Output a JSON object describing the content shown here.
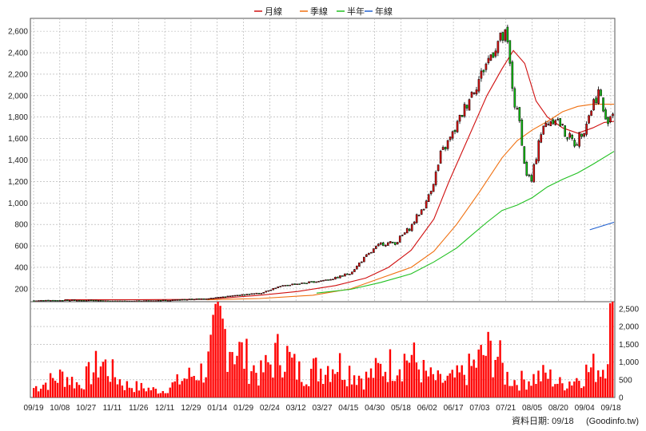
{
  "chart_data": {
    "type": "candlestick",
    "legend": [
      {
        "label": "月線",
        "color": "#d01010"
      },
      {
        "label": "季線",
        "color": "#f07010"
      },
      {
        "label": "半年",
        "color": "#20c020"
      },
      {
        "label": "年線",
        "color": "#2060d0"
      }
    ],
    "price_axis": {
      "ticks": [
        "2,600",
        "2,400",
        "2,200",
        "2,000",
        "1,800",
        "1,600",
        "1,400",
        "1,200",
        "1,000",
        "800",
        "600",
        "400",
        "200"
      ],
      "values": [
        2600,
        2400,
        2200,
        2000,
        1800,
        1600,
        1400,
        1200,
        1000,
        800,
        600,
        400,
        200
      ],
      "ylim": [
        80,
        2720
      ]
    },
    "volume_axis": {
      "ticks": [
        "2,500",
        "2,000",
        "1,500",
        "1,000",
        "500",
        "0"
      ],
      "values": [
        2500,
        2000,
        1500,
        1000,
        500,
        0
      ],
      "ylim": [
        0,
        2700
      ]
    },
    "x_tick_labels": [
      "09/19",
      "10/08",
      "10/27",
      "11/11",
      "11/26",
      "12/11",
      "12/29",
      "01/14",
      "01/29",
      "02/24",
      "03/12",
      "03/27",
      "04/15",
      "04/30",
      "05/18",
      "06/02",
      "06/17",
      "07/03",
      "07/21",
      "08/05",
      "08/20",
      "09/04",
      "09/18"
    ],
    "price_anchors": [
      [
        0,
        90
      ],
      [
        60,
        95
      ],
      [
        120,
        85
      ],
      [
        180,
        95
      ],
      [
        230,
        110
      ],
      [
        270,
        140
      ],
      [
        300,
        160
      ],
      [
        320,
        210
      ],
      [
        340,
        240
      ],
      [
        360,
        255
      ],
      [
        380,
        275
      ],
      [
        400,
        300
      ],
      [
        420,
        350
      ],
      [
        440,
        500
      ],
      [
        460,
        620
      ],
      [
        480,
        630
      ],
      [
        500,
        780
      ],
      [
        520,
        1000
      ],
      [
        530,
        1200
      ],
      [
        540,
        1450
      ],
      [
        560,
        1700
      ],
      [
        575,
        1950
      ],
      [
        590,
        2150
      ],
      [
        600,
        2300
      ],
      [
        615,
        2500
      ],
      [
        625,
        2550
      ],
      [
        630,
        2400
      ],
      [
        637,
        1950
      ],
      [
        644,
        1750
      ],
      [
        652,
        1300
      ],
      [
        660,
        1200
      ],
      [
        670,
        1600
      ],
      [
        680,
        1750
      ],
      [
        692,
        1800
      ],
      [
        705,
        1650
      ],
      [
        718,
        1550
      ],
      [
        730,
        1700
      ],
      [
        740,
        1900
      ],
      [
        750,
        2050
      ],
      [
        758,
        1750
      ],
      [
        768,
        1850
      ]
    ],
    "volume_anchors": [
      [
        0,
        300
      ],
      [
        40,
        700
      ],
      [
        60,
        400
      ],
      [
        90,
        1100
      ],
      [
        120,
        400
      ],
      [
        170,
        200
      ],
      [
        200,
        600
      ],
      [
        230,
        900
      ],
      [
        245,
        2300
      ],
      [
        270,
        1500
      ],
      [
        300,
        700
      ],
      [
        330,
        1500
      ],
      [
        350,
        800
      ],
      [
        380,
        900
      ],
      [
        400,
        1100
      ],
      [
        440,
        600
      ],
      [
        460,
        900
      ],
      [
        500,
        1300
      ],
      [
        520,
        700
      ],
      [
        540,
        500
      ],
      [
        560,
        600
      ],
      [
        580,
        900
      ],
      [
        600,
        1400
      ],
      [
        615,
        1400
      ],
      [
        625,
        700
      ],
      [
        640,
        500
      ],
      [
        660,
        600
      ],
      [
        680,
        700
      ],
      [
        700,
        400
      ],
      [
        720,
        600
      ],
      [
        740,
        900
      ],
      [
        755,
        1000
      ],
      [
        768,
        2700
      ]
    ],
    "moving_averages": [
      {
        "name": "月線",
        "color": "#d01010",
        "points": [
          [
            42,
            98
          ],
          [
            120,
            98
          ],
          [
            230,
            102
          ],
          [
            300,
            140
          ],
          [
            350,
            175
          ],
          [
            400,
            230
          ],
          [
            440,
            300
          ],
          [
            470,
            400
          ],
          [
            500,
            560
          ],
          [
            530,
            850
          ],
          [
            550,
            1200
          ],
          [
            575,
            1600
          ],
          [
            600,
            2000
          ],
          [
            620,
            2250
          ],
          [
            635,
            2420
          ],
          [
            650,
            2300
          ],
          [
            665,
            1950
          ],
          [
            680,
            1800
          ],
          [
            700,
            1700
          ],
          [
            720,
            1650
          ],
          [
            740,
            1700
          ],
          [
            755,
            1750
          ],
          [
            768,
            1760
          ]
        ]
      },
      {
        "name": "季線",
        "color": "#f07010",
        "points": [
          [
            230,
            98
          ],
          [
            300,
            110
          ],
          [
            370,
            140
          ],
          [
            420,
            200
          ],
          [
            460,
            300
          ],
          [
            500,
            400
          ],
          [
            530,
            550
          ],
          [
            560,
            800
          ],
          [
            590,
            1100
          ],
          [
            620,
            1420
          ],
          [
            640,
            1580
          ],
          [
            660,
            1680
          ],
          [
            680,
            1760
          ],
          [
            700,
            1850
          ],
          [
            720,
            1900
          ],
          [
            740,
            1920
          ],
          [
            768,
            1920
          ]
        ]
      },
      {
        "name": "半年",
        "color": "#20c020",
        "points": [
          [
            375,
            160
          ],
          [
            420,
            195
          ],
          [
            460,
            260
          ],
          [
            500,
            340
          ],
          [
            530,
            450
          ],
          [
            560,
            580
          ],
          [
            580,
            700
          ],
          [
            600,
            820
          ],
          [
            620,
            930
          ],
          [
            640,
            980
          ],
          [
            660,
            1050
          ],
          [
            680,
            1150
          ],
          [
            700,
            1220
          ],
          [
            720,
            1280
          ],
          [
            740,
            1360
          ],
          [
            768,
            1480
          ]
        ]
      },
      {
        "name": "年線",
        "color": "#2060d0",
        "points": [
          [
            736,
            750
          ],
          [
            768,
            820
          ]
        ]
      }
    ],
    "source_label": "資料日期: 09/18",
    "source_site": "(Goodinfo.tw)"
  }
}
